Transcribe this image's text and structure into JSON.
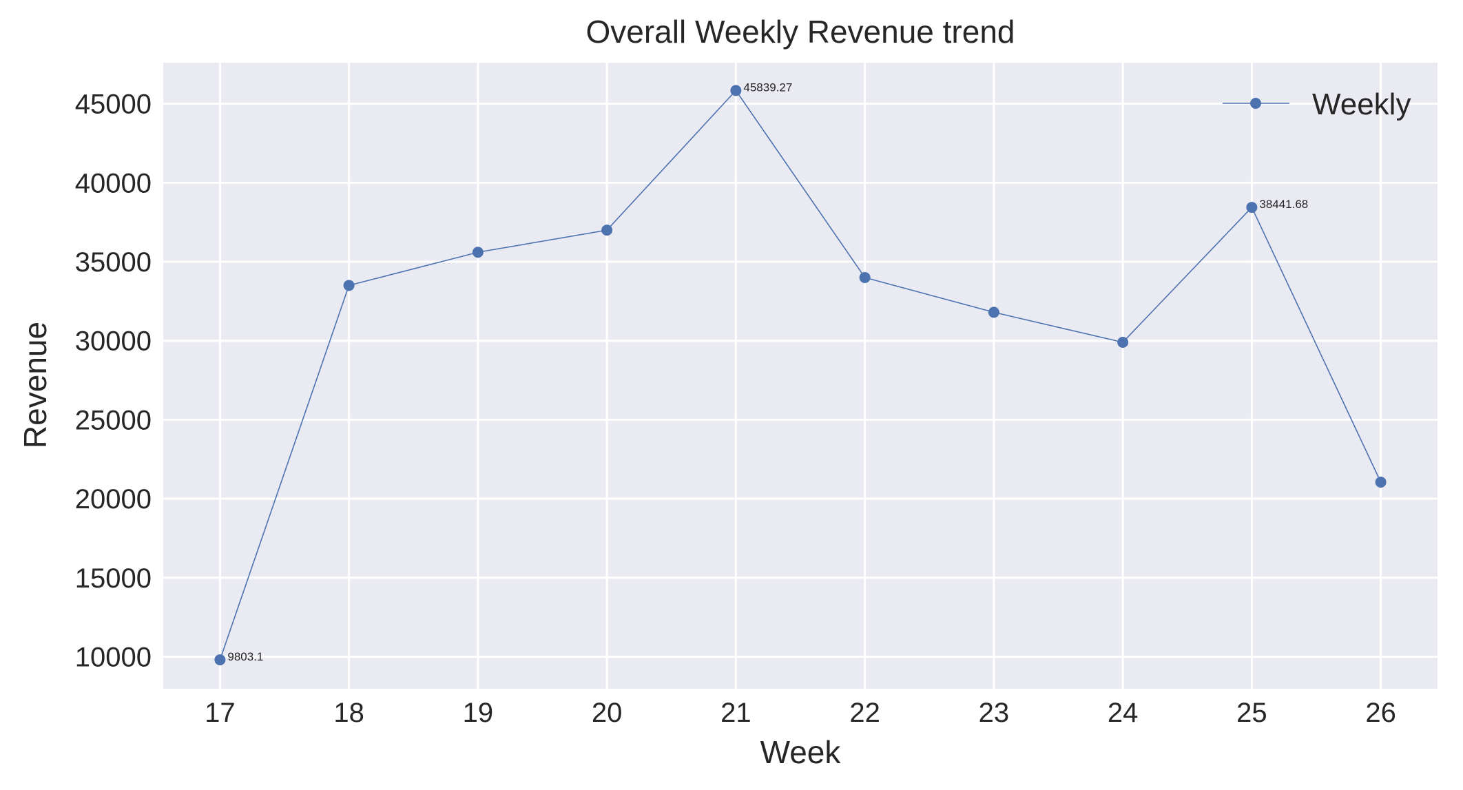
{
  "chart_data": {
    "type": "line",
    "title": "Overall Weekly Revenue trend",
    "xlabel": "Week",
    "ylabel": "Revenue",
    "x": [
      17,
      18,
      19,
      20,
      21,
      22,
      23,
      24,
      25,
      26
    ],
    "series": [
      {
        "name": "Weekly",
        "values": [
          9803.1,
          33500,
          35600,
          37000,
          45839.27,
          34000,
          31800,
          29900,
          38441.68,
          21050
        ]
      }
    ],
    "annotations": [
      {
        "x": 17,
        "y": 9803.1,
        "text": "9803.1"
      },
      {
        "x": 21,
        "y": 45839.27,
        "text": "45839.27"
      },
      {
        "x": 25,
        "y": 38441.68,
        "text": "38441.68"
      }
    ],
    "xticks": [
      "17",
      "18",
      "19",
      "20",
      "21",
      "22",
      "23",
      "24",
      "25",
      "26"
    ],
    "yticks": [
      "10000",
      "15000",
      "20000",
      "25000",
      "30000",
      "35000",
      "40000",
      "45000"
    ],
    "xlim": [
      16.56,
      26.44
    ],
    "ylim": [
      7970,
      47600
    ],
    "grid": true,
    "legend_position": "top-right",
    "colors": {
      "line": "#4c72b0",
      "plot_background": "#eaeaf2",
      "grid": "#ffffff",
      "text": "#262626"
    }
  }
}
